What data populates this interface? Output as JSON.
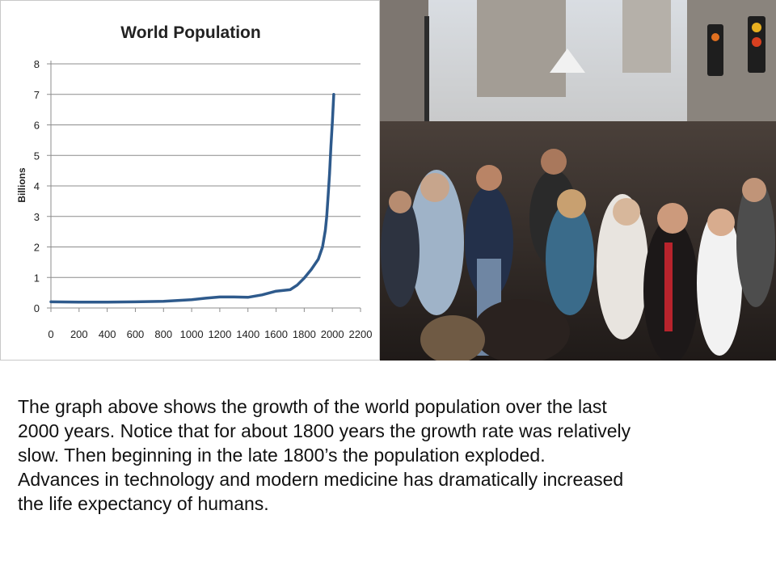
{
  "chart_data": {
    "type": "line",
    "title": "World Population",
    "xlabel": "",
    "ylabel": "Billions",
    "xlim": [
      0,
      2200
    ],
    "ylim": [
      0,
      8
    ],
    "x_ticks": [
      "0",
      "200",
      "400",
      "600",
      "800",
      "1000",
      "1200",
      "1400",
      "1600",
      "1800",
      "2000",
      "2200"
    ],
    "y_ticks": [
      "0",
      "1",
      "2",
      "3",
      "4",
      "5",
      "6",
      "7",
      "8"
    ],
    "grid": true,
    "legend": "none",
    "line_color": "#2e5a8c",
    "series": [
      {
        "x": [
          0,
          200,
          400,
          600,
          800,
          1000,
          1100,
          1200,
          1300,
          1400,
          1500,
          1600,
          1700,
          1750,
          1800,
          1850,
          1900,
          1930,
          1950,
          1960,
          1970,
          1980,
          1990,
          2000,
          2010
        ],
        "values": [
          0.2,
          0.19,
          0.19,
          0.2,
          0.22,
          0.27,
          0.32,
          0.36,
          0.36,
          0.35,
          0.43,
          0.55,
          0.6,
          0.75,
          0.98,
          1.26,
          1.6,
          2.0,
          2.55,
          3.0,
          3.7,
          4.4,
          5.3,
          6.1,
          7.0
        ]
      }
    ]
  },
  "photo": {
    "subject": "crowd-on-city-street",
    "colors": {
      "sky": "#cfd4da",
      "buildings": "#8d8a86",
      "crowd": "#2b2522"
    }
  },
  "caption": {
    "lines": [
      "The graph above shows the growth of the world population over the last",
      "2000 years. Notice that for about 1800 years the growth rate was relatively",
      "slow. Then beginning in the late 1800’s the population exploded.",
      "Advances in technology and modern medicine has dramatically increased",
      "the life expectancy of humans."
    ]
  }
}
